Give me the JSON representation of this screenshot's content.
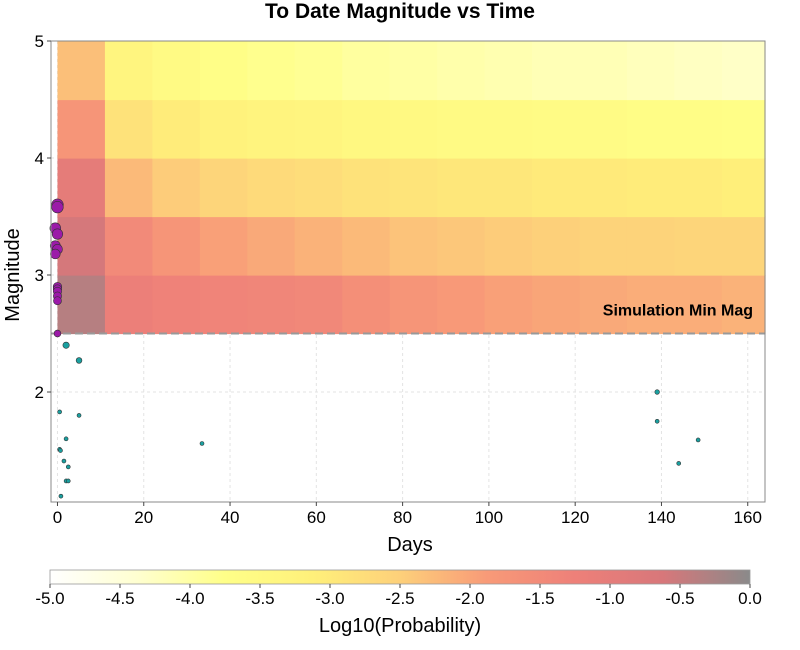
{
  "chart_data": {
    "type": "heatmap",
    "title": "To Date Magnitude vs Time",
    "xlabel": "Days",
    "ylabel": "Magnitude",
    "xlim": [
      -1.5,
      164
    ],
    "ylim": [
      1.06,
      5.0
    ],
    "x_ticks": [
      "0",
      "20",
      "40",
      "60",
      "80",
      "100",
      "120",
      "140",
      "160"
    ],
    "y_ticks": [
      "2",
      "3",
      "4",
      "5"
    ],
    "grid": true,
    "annotation": "Simulation Min Mag",
    "min_mag_line": 2.5,
    "heatmap": {
      "mag_bins": [
        [
          2.5,
          3.0
        ],
        [
          3.0,
          3.5
        ],
        [
          3.5,
          4.0
        ],
        [
          4.0,
          4.5
        ],
        [
          4.5,
          5.0
        ]
      ],
      "time_bins": [
        [
          0,
          11
        ],
        [
          11,
          22
        ],
        [
          22,
          33
        ],
        [
          33,
          44
        ],
        [
          44,
          55
        ],
        [
          55,
          66
        ],
        [
          66,
          77
        ],
        [
          77,
          88
        ],
        [
          88,
          99
        ],
        [
          99,
          110
        ],
        [
          110,
          121
        ],
        [
          121,
          132
        ],
        [
          132,
          143
        ],
        [
          143,
          154
        ],
        [
          154,
          164
        ]
      ],
      "log10_probability": [
        [
          -0.35,
          -1.2,
          -1.3,
          -1.35,
          -1.4,
          -1.45,
          -1.6,
          -1.75,
          -1.85,
          -1.95,
          -2.0,
          -2.05,
          -2.1,
          -2.1,
          -2.15
        ],
        [
          -0.6,
          -1.5,
          -1.75,
          -1.95,
          -2.05,
          -2.15,
          -2.25,
          -2.35,
          -2.4,
          -2.45,
          -2.5,
          -2.55,
          -2.55,
          -2.6,
          -2.6
        ],
        [
          -1.0,
          -2.25,
          -2.45,
          -2.6,
          -2.7,
          -2.75,
          -2.85,
          -2.9,
          -2.95,
          -2.95,
          -3.0,
          -3.0,
          -3.05,
          -3.05,
          -3.1
        ],
        [
          -1.75,
          -2.85,
          -3.05,
          -3.2,
          -3.3,
          -3.35,
          -3.45,
          -3.5,
          -3.55,
          -3.55,
          -3.6,
          -3.6,
          -3.65,
          -3.65,
          -3.7
        ],
        [
          -2.3,
          -3.35,
          -3.55,
          -3.7,
          -3.8,
          -3.85,
          -3.95,
          -4.0,
          -4.05,
          -4.1,
          -4.15,
          -4.15,
          -4.2,
          -4.25,
          -4.3
        ]
      ]
    },
    "series": [
      {
        "color": "#9b1aa8",
        "points": [
          [
            0,
            3.6
          ],
          [
            0,
            3.58
          ],
          [
            -0.5,
            3.4
          ],
          [
            0,
            3.35
          ],
          [
            -0.5,
            3.25
          ],
          [
            0,
            3.22
          ],
          [
            -0.5,
            3.18
          ],
          [
            0,
            2.9
          ],
          [
            0,
            2.88
          ],
          [
            0,
            2.86
          ],
          [
            0,
            2.82
          ],
          [
            0,
            2.78
          ],
          [
            0,
            2.5
          ]
        ]
      },
      {
        "color": "#1aa0a0",
        "points": [
          [
            2,
            2.4
          ],
          [
            5,
            2.27
          ],
          [
            0.5,
            1.83
          ],
          [
            5,
            1.8
          ],
          [
            2,
            1.6
          ],
          [
            0.5,
            1.51
          ],
          [
            0.7,
            1.5
          ],
          [
            1.5,
            1.41
          ],
          [
            2.5,
            1.36
          ],
          [
            2,
            1.24
          ],
          [
            2.5,
            1.24
          ],
          [
            0.8,
            1.11
          ],
          [
            33.5,
            1.56
          ],
          [
            139,
            2.0
          ],
          [
            139,
            1.75
          ],
          [
            144,
            1.39
          ],
          [
            148.5,
            1.59
          ]
        ]
      }
    ],
    "colorbar": {
      "label": "Log10(Probability)",
      "range": [
        -5.0,
        0.0
      ],
      "ticks": [
        "-5.0",
        "-4.5",
        "-4.0",
        "-3.5",
        "-3.0",
        "-2.5",
        "-2.0",
        "-1.5",
        "-1.0",
        "-0.5",
        "0.0"
      ],
      "colors": [
        "#ffffff",
        "#ffffd0",
        "#ffff88",
        "#fff07a",
        "#fdd07a",
        "#f89a78",
        "#ee8079",
        "#d8777a",
        "#8a8a8a"
      ]
    }
  }
}
